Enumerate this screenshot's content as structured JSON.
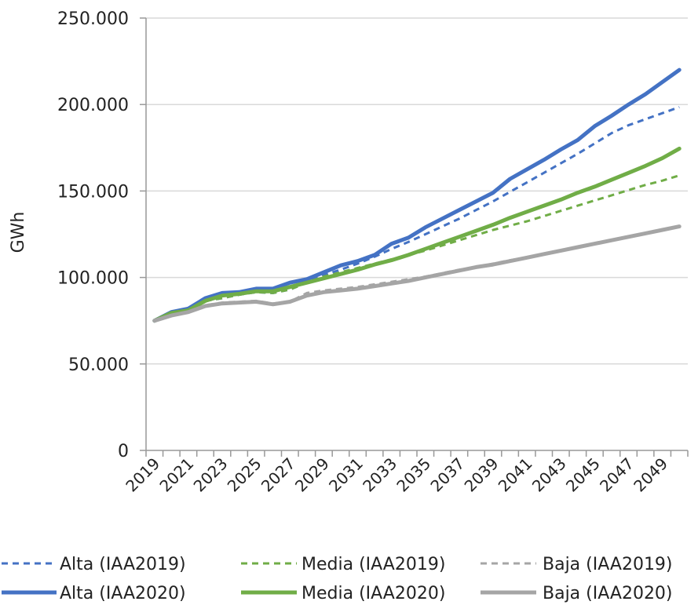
{
  "chart_data": {
    "type": "line",
    "title": "",
    "xlabel": "",
    "ylabel": "GWh",
    "ylim": [
      0,
      250000
    ],
    "yticks": [
      0,
      50000,
      100000,
      150000,
      200000,
      250000
    ],
    "ytick_labels": [
      "0",
      "50.000",
      "100.000",
      "150.000",
      "200.000",
      "250.000"
    ],
    "x_range": [
      2019,
      2050
    ],
    "xtick_labels": [
      "2019",
      "2021",
      "2023",
      "2025",
      "2027",
      "2029",
      "2031",
      "2033",
      "2035",
      "2037",
      "2039",
      "2041",
      "2043",
      "2045",
      "2047",
      "2049"
    ],
    "grid": "horizontal",
    "legend_position": "bottom",
    "series": [
      {
        "name": "Alta (IAA2019)",
        "style": "dashed",
        "color": "#4472C4",
        "x": [
          2019,
          2020,
          2021,
          2022,
          2023,
          2024,
          2025,
          2026,
          2027,
          2028,
          2029,
          2030,
          2031,
          2032,
          2033,
          2034,
          2035,
          2036,
          2037,
          2038,
          2039,
          2040,
          2041,
          2042,
          2043,
          2044,
          2045,
          2046,
          2047,
          2048,
          2049,
          2050
        ],
        "y": [
          75000,
          80000,
          81500,
          86500,
          88000,
          90000,
          91500,
          91000,
          93000,
          97000,
          101500,
          104500,
          108000,
          112000,
          116500,
          120500,
          125000,
          129500,
          134000,
          139000,
          144000,
          149500,
          155000,
          160500,
          166000,
          171500,
          177500,
          183500,
          188000,
          191500,
          195000,
          198500
        ]
      },
      {
        "name": "Media (IAA2019)",
        "style": "dashed",
        "color": "#70AD47",
        "x": [
          2019,
          2020,
          2021,
          2022,
          2023,
          2024,
          2025,
          2026,
          2027,
          2028,
          2029,
          2030,
          2031,
          2032,
          2033,
          2034,
          2035,
          2036,
          2037,
          2038,
          2039,
          2040,
          2041,
          2042,
          2043,
          2044,
          2045,
          2046,
          2047,
          2048,
          2049,
          2050
        ],
        "y": [
          75000,
          80000,
          81500,
          86500,
          88000,
          90000,
          91500,
          91000,
          93000,
          97000,
          100500,
          103000,
          105500,
          108000,
          110500,
          113000,
          115500,
          118500,
          121500,
          124500,
          127500,
          130000,
          132500,
          135500,
          138500,
          141500,
          144500,
          147500,
          150500,
          153500,
          156000,
          159000
        ]
      },
      {
        "name": "Baja (IAA2019)",
        "style": "dashed",
        "color": "#A5A5A5",
        "x": [
          2019,
          2020,
          2021,
          2022,
          2023,
          2024,
          2025,
          2026,
          2027,
          2028,
          2029,
          2030,
          2031,
          2032,
          2033,
          2034,
          2035,
          2036,
          2037,
          2038,
          2039,
          2040,
          2041,
          2042,
          2043,
          2044,
          2045,
          2046,
          2047,
          2048,
          2049,
          2050
        ],
        "y": [
          75000,
          78000,
          80000,
          84000,
          85500,
          86000,
          86500,
          85000,
          86000,
          91000,
          92500,
          93500,
          94500,
          96000,
          97500,
          99000,
          100500,
          102500,
          104500,
          106000,
          108000,
          110000,
          111500,
          113500,
          115500,
          117500,
          119500,
          121500,
          123500,
          125500,
          127500,
          129500
        ]
      },
      {
        "name": "Alta (IAA2020)",
        "style": "solid",
        "color": "#4472C4",
        "x": [
          2019,
          2020,
          2021,
          2022,
          2023,
          2024,
          2025,
          2026,
          2027,
          2028,
          2029,
          2030,
          2031,
          2032,
          2033,
          2034,
          2035,
          2036,
          2037,
          2038,
          2039,
          2040,
          2041,
          2042,
          2043,
          2044,
          2045,
          2046,
          2047,
          2048,
          2049,
          2050
        ],
        "y": [
          75000,
          80000,
          82000,
          88000,
          91000,
          91500,
          93500,
          93500,
          97000,
          99000,
          103000,
          107000,
          109500,
          113000,
          119500,
          123000,
          129000,
          134000,
          139000,
          144000,
          149000,
          157000,
          162500,
          168000,
          174000,
          179500,
          187500,
          193500,
          200000,
          206000,
          213000,
          220000
        ]
      },
      {
        "name": "Media (IAA2020)",
        "style": "solid",
        "color": "#70AD47",
        "x": [
          2019,
          2020,
          2021,
          2022,
          2023,
          2024,
          2025,
          2026,
          2027,
          2028,
          2029,
          2030,
          2031,
          2032,
          2033,
          2034,
          2035,
          2036,
          2037,
          2038,
          2039,
          2040,
          2041,
          2042,
          2043,
          2044,
          2045,
          2046,
          2047,
          2048,
          2049,
          2050
        ],
        "y": [
          75000,
          79500,
          81000,
          86500,
          89500,
          90500,
          92000,
          92000,
          94500,
          97000,
          99500,
          102000,
          104500,
          107500,
          110000,
          113000,
          116500,
          120000,
          123500,
          127000,
          130500,
          134500,
          138000,
          141500,
          145000,
          149000,
          152500,
          156500,
          160500,
          164500,
          169000,
          174500
        ]
      },
      {
        "name": "Baja (IAA2020)",
        "style": "solid",
        "color": "#A5A5A5",
        "x": [
          2019,
          2020,
          2021,
          2022,
          2023,
          2024,
          2025,
          2026,
          2027,
          2028,
          2029,
          2030,
          2031,
          2032,
          2033,
          2034,
          2035,
          2036,
          2037,
          2038,
          2039,
          2040,
          2041,
          2042,
          2043,
          2044,
          2045,
          2046,
          2047,
          2048,
          2049,
          2050
        ],
        "y": [
          75000,
          78000,
          80000,
          83500,
          85000,
          85500,
          86000,
          84500,
          86000,
          89500,
          91500,
          92500,
          93500,
          95000,
          96500,
          98000,
          100000,
          102000,
          104000,
          106000,
          107500,
          109500,
          111500,
          113500,
          115500,
          117500,
          119500,
          121500,
          123500,
          125500,
          127500,
          129500
        ]
      }
    ]
  }
}
